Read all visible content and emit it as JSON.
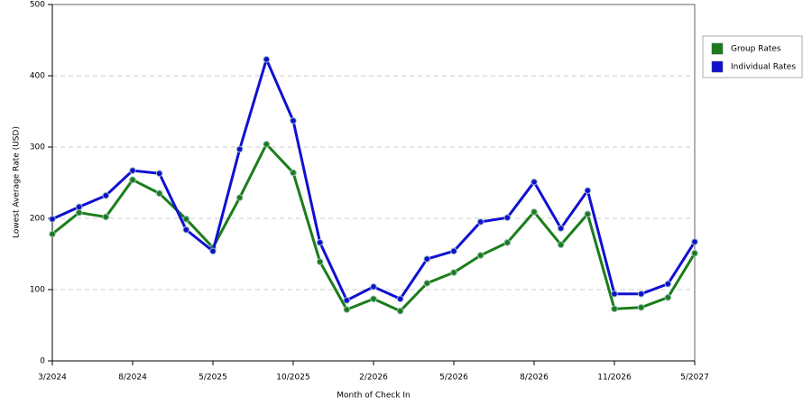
{
  "chart_data": {
    "type": "line",
    "x_label": "Month of Check In",
    "y_label": "Lowest Average Rate (USD)",
    "categories": [
      "3/2024",
      null,
      null,
      "8/2024",
      null,
      null,
      "5/2025",
      null,
      null,
      "10/2025",
      null,
      null,
      "2/2026",
      null,
      null,
      "5/2026",
      null,
      null,
      "8/2026",
      null,
      null,
      "11/2026",
      null,
      null,
      "5/2027"
    ],
    "series": [
      {
        "name": "Group Rates",
        "color": "#1a7d1a",
        "values": [
          178,
          208,
          202,
          254,
          235,
          199,
          159,
          229,
          304,
          264,
          139,
          72,
          87,
          70,
          109,
          124,
          148,
          166,
          209,
          163,
          206,
          73,
          75,
          89,
          151
        ]
      },
      {
        "name": "Individual Rates",
        "color": "#1010d0",
        "values": [
          199,
          216,
          232,
          267,
          263,
          184,
          154,
          297,
          423,
          337,
          166,
          85,
          104,
          87,
          143,
          154,
          195,
          201,
          251,
          186,
          239,
          94,
          94,
          108,
          167
        ]
      }
    ],
    "ylim": [
      0,
      500
    ],
    "yticks": [
      0,
      100,
      200,
      300,
      400,
      500
    ],
    "grid": true,
    "legend": "right"
  }
}
